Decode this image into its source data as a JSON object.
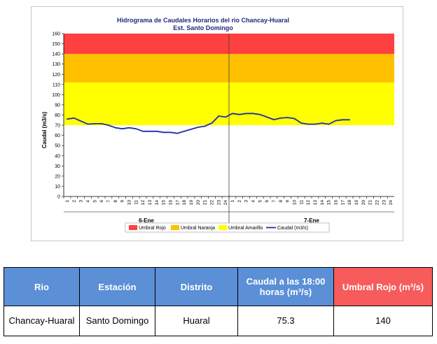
{
  "chart_data": {
    "type": "line",
    "title": "Hidrograma de Caudales Horarios del rio Chancay-Huaral",
    "subtitle": "Est. Santo Domingo",
    "ylabel": "Caudal  (m3/s)",
    "ylim": [
      0,
      160
    ],
    "yticks": [
      0,
      10,
      20,
      30,
      40,
      50,
      60,
      70,
      80,
      90,
      100,
      110,
      120,
      130,
      140,
      150,
      160
    ],
    "hour_labels": [
      "1",
      "2",
      "3",
      "4",
      "5",
      "6",
      "7",
      "8",
      "9",
      "10",
      "11",
      "12",
      "13",
      "14",
      "15",
      "16",
      "17",
      "18",
      "19",
      "20",
      "21",
      "22",
      "23",
      "24"
    ],
    "day_labels": [
      "6-Ene",
      "7-Ene"
    ],
    "bands": [
      {
        "name": "Umbral Amarillo",
        "from": 70,
        "to": 112,
        "color": "#ffff00"
      },
      {
        "name": "Umbral Naranja",
        "from": 112,
        "to": 140,
        "color": "#ffc000"
      },
      {
        "name": "Umbral Rojo",
        "from": 140,
        "to": 160,
        "color": "#ff4040"
      }
    ],
    "series": [
      {
        "name": "Caudal (m3/s)",
        "color": "#1f2ea8",
        "values": [
          76,
          77,
          74,
          71,
          71.5,
          71.5,
          70,
          67.5,
          66.5,
          67.5,
          66.5,
          64,
          64,
          64,
          63,
          63,
          62,
          64,
          66,
          68,
          69,
          72,
          79,
          78,
          81.5,
          80.5,
          81.5,
          81.5,
          80.5,
          78,
          75.5,
          77,
          77.5,
          76.5,
          72,
          71,
          71,
          72,
          71,
          74.5,
          75.3,
          75.3
        ]
      }
    ],
    "legend": [
      "Umbral Rojo",
      "Umbral Naranja",
      "Umbral Amarillo",
      "Caudal (m3/s)"
    ],
    "legend_position": "bottom",
    "grid": false
  },
  "table": {
    "headers": [
      "Rio",
      "Estación",
      "Distrito",
      "Caudal a las 18:00 horas (m³/s)",
      "Umbral Rojo (m³/s)"
    ],
    "rows": [
      [
        "Chancay-Huaral",
        "Santo Domingo",
        "Huaral",
        "75.3",
        "140"
      ]
    ]
  }
}
